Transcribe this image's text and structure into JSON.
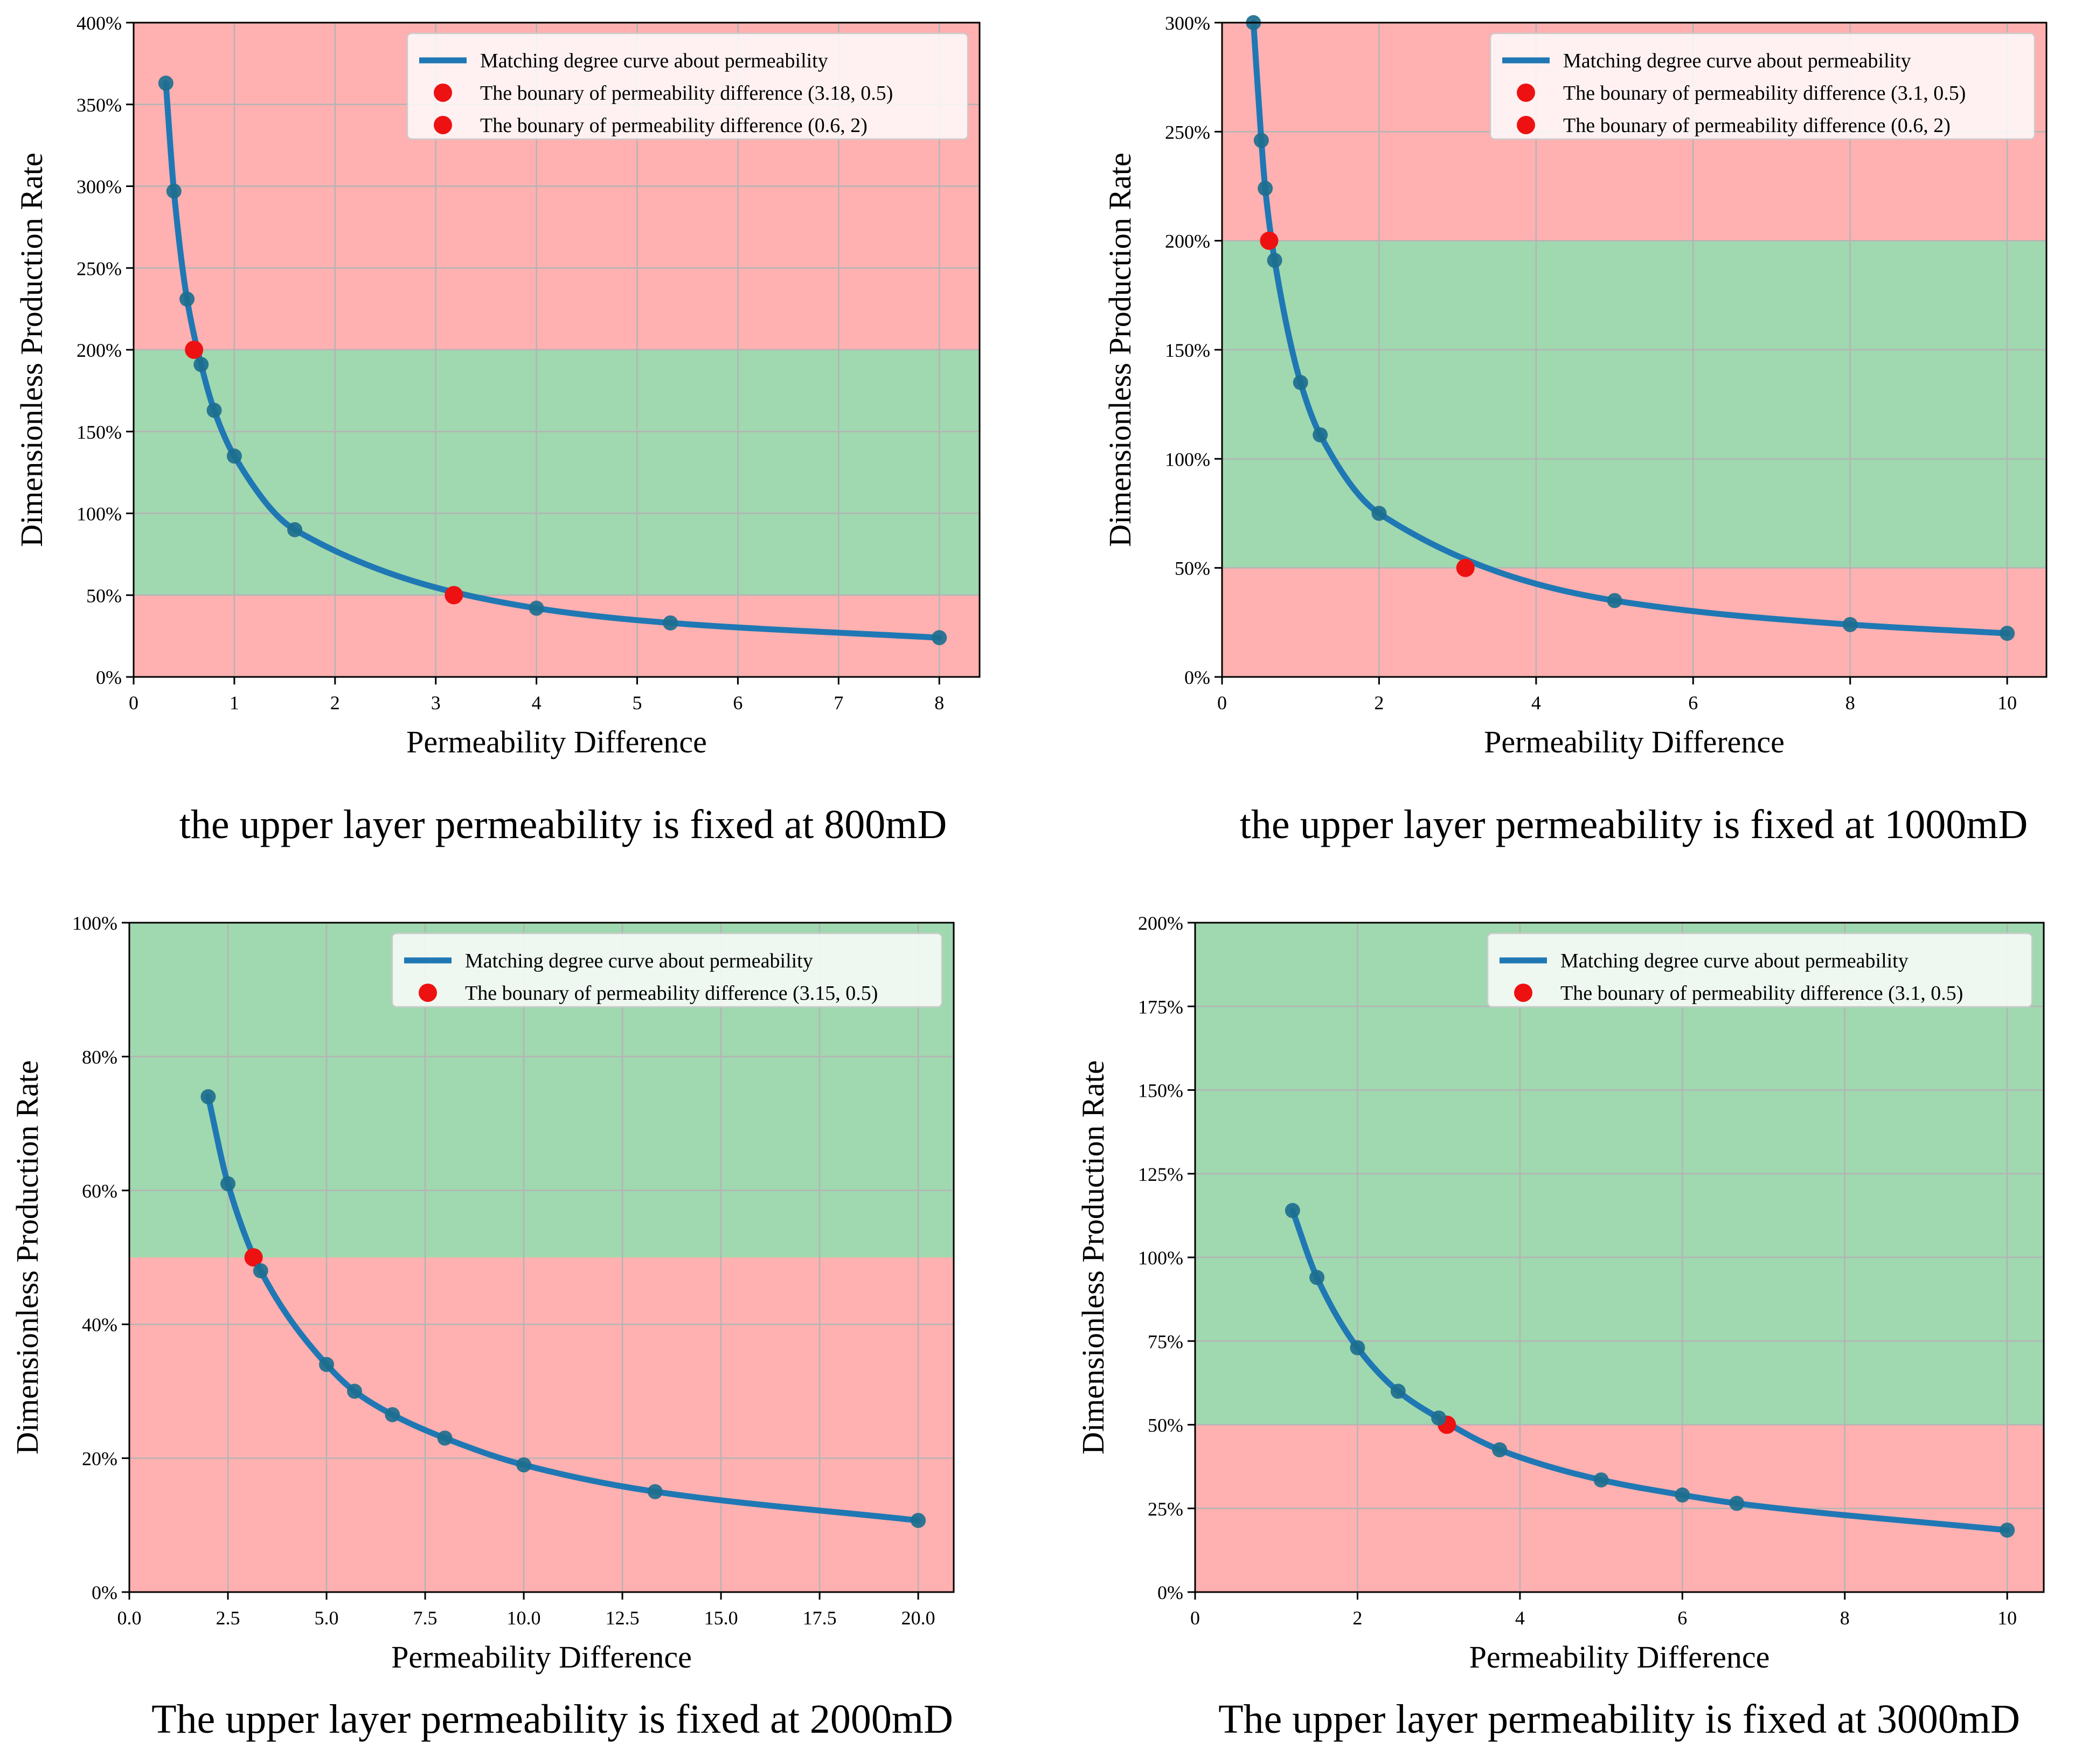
{
  "chart_data": [
    {
      "type": "line",
      "caption": "the upper layer permeability is fixed at 800mD",
      "xlabel": "Permeability Difference",
      "ylabel": "Dimensionless Production Rate",
      "xlim": [
        0,
        8.4
      ],
      "ylim": [
        0,
        4
      ],
      "xticks": [
        0,
        1,
        2,
        3,
        4,
        5,
        6,
        7,
        8
      ],
      "xtick_labels": [
        "0",
        "1",
        "2",
        "3",
        "4",
        "5",
        "6",
        "7",
        "8"
      ],
      "yticks": [
        0,
        0.5,
        1,
        1.5,
        2,
        2.5,
        3,
        3.5,
        4
      ],
      "ytick_labels": [
        "0%",
        "50%",
        "100%",
        "150%",
        "200%",
        "250%",
        "300%",
        "350%",
        "400%"
      ],
      "bands": [
        {
          "from": 0,
          "to": 0.5,
          "zone": "red"
        },
        {
          "from": 0.5,
          "to": 2,
          "zone": "green"
        },
        {
          "from": 2,
          "to": 4,
          "zone": "red"
        }
      ],
      "series": [
        {
          "name": "Matching degree curve about permeability",
          "x": [
            0.32,
            0.4,
            0.53,
            0.67,
            0.8,
            1.0,
            1.6,
            4.0,
            5.33,
            8.0
          ],
          "y": [
            3.63,
            2.97,
            2.31,
            1.91,
            1.63,
            1.35,
            0.9,
            0.42,
            0.33,
            0.24
          ]
        }
      ],
      "boundaries": [
        {
          "label": "The bounary of permeability difference (3.18, 0.5)",
          "x": 3.18,
          "y": 0.5
        },
        {
          "label": "The bounary of permeability difference (0.6, 2)",
          "x": 0.6,
          "y": 2
        }
      ]
    },
    {
      "type": "line",
      "caption": "the upper layer permeability is fixed at 1000mD",
      "xlabel": "Permeability Difference",
      "ylabel": "Dimensionless Production Rate",
      "xlim": [
        0,
        10.5
      ],
      "ylim": [
        0,
        3
      ],
      "xticks": [
        0,
        2,
        4,
        6,
        8,
        10
      ],
      "xtick_labels": [
        "0",
        "2",
        "4",
        "6",
        "8",
        "10"
      ],
      "yticks": [
        0,
        0.5,
        1,
        1.5,
        2,
        2.5,
        3
      ],
      "ytick_labels": [
        "0%",
        "50%",
        "100%",
        "150%",
        "200%",
        "250%",
        "300%"
      ],
      "bands": [
        {
          "from": 0,
          "to": 0.5,
          "zone": "red"
        },
        {
          "from": 0.5,
          "to": 2,
          "zone": "green"
        },
        {
          "from": 2,
          "to": 3,
          "zone": "red"
        }
      ],
      "series": [
        {
          "name": "Matching degree curve about permeability",
          "x": [
            0.4,
            0.5,
            0.55,
            0.67,
            1.0,
            1.25,
            2.0,
            5.0,
            8.0,
            10.0
          ],
          "y": [
            3.0,
            2.46,
            2.24,
            1.91,
            1.35,
            1.11,
            0.75,
            0.35,
            0.24,
            0.2
          ]
        }
      ],
      "boundaries": [
        {
          "label": "The bounary of permeability difference (3.1, 0.5)",
          "x": 3.1,
          "y": 0.5
        },
        {
          "label": "The bounary of permeability difference (0.6, 2)",
          "x": 0.6,
          "y": 2
        }
      ]
    },
    {
      "type": "line",
      "caption": "The upper layer permeability is fixed at 2000mD",
      "xlabel": "Permeability Difference",
      "ylabel": "Dimensionless Production Rate",
      "xlim": [
        0,
        20.9
      ],
      "ylim": [
        0,
        1
      ],
      "xticks": [
        0,
        2.5,
        5,
        7.5,
        10,
        12.5,
        15,
        17.5,
        20
      ],
      "xtick_labels": [
        "0.0",
        "2.5",
        "5.0",
        "7.5",
        "10.0",
        "12.5",
        "15.0",
        "17.5",
        "20.0"
      ],
      "yticks": [
        0,
        0.2,
        0.4,
        0.6,
        0.8,
        1.0
      ],
      "ytick_labels": [
        "0%",
        "20%",
        "40%",
        "60%",
        "80%",
        "100%"
      ],
      "bands": [
        {
          "from": 0,
          "to": 0.5,
          "zone": "red"
        },
        {
          "from": 0.5,
          "to": 1,
          "zone": "green"
        }
      ],
      "series": [
        {
          "name": "Matching degree curve about permeability",
          "x": [
            2.0,
            2.5,
            3.33,
            5.0,
            5.71,
            6.67,
            8.0,
            10.0,
            13.33,
            20.0
          ],
          "y": [
            0.74,
            0.61,
            0.48,
            0.34,
            0.3,
            0.265,
            0.23,
            0.19,
            0.15,
            0.107
          ]
        }
      ],
      "boundaries": [
        {
          "label": "The bounary of permeability difference (3.15, 0.5)",
          "x": 3.15,
          "y": 0.5
        }
      ]
    },
    {
      "type": "line",
      "caption": "The upper layer permeability is fixed at 3000mD",
      "xlabel": "Permeability Difference",
      "ylabel": "Dimensionless Production Rate",
      "xlim": [
        0,
        10.45
      ],
      "ylim": [
        0,
        2
      ],
      "xticks": [
        0,
        2,
        4,
        6,
        8,
        10
      ],
      "xtick_labels": [
        "0",
        "2",
        "4",
        "6",
        "8",
        "10"
      ],
      "yticks": [
        0,
        0.25,
        0.5,
        0.75,
        1.0,
        1.25,
        1.5,
        1.75,
        2.0
      ],
      "ytick_labels": [
        "0%",
        "25%",
        "50%",
        "75%",
        "100%",
        "125%",
        "150%",
        "175%",
        "200%"
      ],
      "bands": [
        {
          "from": 0,
          "to": 0.5,
          "zone": "red"
        },
        {
          "from": 0.5,
          "to": 2,
          "zone": "green"
        }
      ],
      "series": [
        {
          "name": "Matching degree curve about permeability",
          "x": [
            1.2,
            1.5,
            2.0,
            2.5,
            3.0,
            3.75,
            5.0,
            6.0,
            6.67,
            10.0
          ],
          "y": [
            1.14,
            0.94,
            0.73,
            0.6,
            0.52,
            0.425,
            0.335,
            0.29,
            0.265,
            0.185
          ]
        }
      ],
      "boundaries": [
        {
          "label": "The bounary of permeability difference (3.1, 0.5)",
          "x": 3.1,
          "y": 0.5
        }
      ]
    }
  ],
  "colors": {
    "red_zone": "#ffb0b0",
    "green_zone": "#a0d8b0",
    "curve": "#1f78b4",
    "marker": "#1d6f8f",
    "boundary": "#ee1111",
    "grid": "#b4b4b4"
  }
}
